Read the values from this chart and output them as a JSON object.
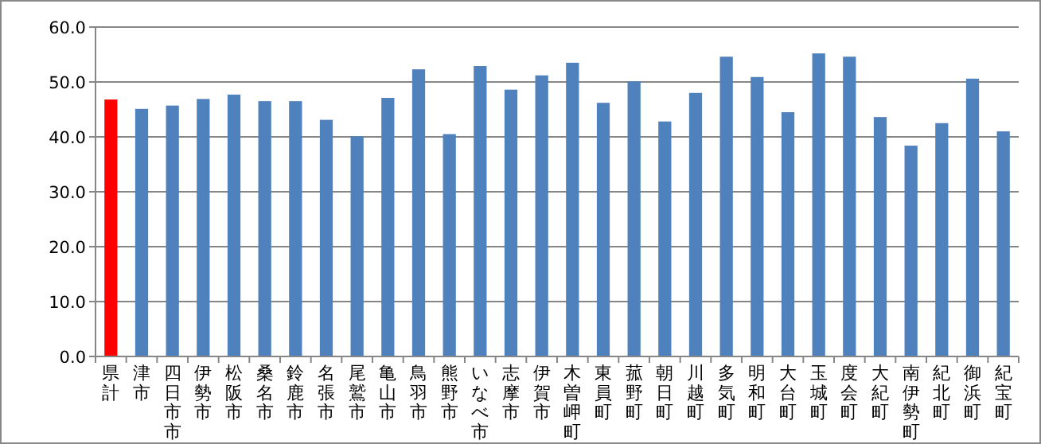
{
  "chart_data": {
    "type": "bar",
    "categories": [
      "県計",
      "津市",
      "四日市市",
      "伊勢市",
      "松阪市",
      "桑名市",
      "鈴鹿市",
      "名張市",
      "尾鷲市",
      "亀山市",
      "鳥羽市",
      "熊野市",
      "いなべ市",
      "志摩市",
      "伊賀市",
      "木曽岬町",
      "東員町",
      "菰野町",
      "朝日町",
      "川越町",
      "多気町",
      "明和町",
      "大台町",
      "玉城町",
      "度会町",
      "大紀町",
      "南伊勢町",
      "紀北町",
      "御浜町",
      "紀宝町"
    ],
    "values": [
      46.8,
      45.1,
      45.7,
      46.9,
      47.7,
      46.5,
      46.5,
      43.1,
      40.1,
      47.1,
      52.3,
      40.5,
      52.9,
      48.6,
      51.2,
      53.5,
      46.2,
      50.1,
      42.8,
      48.0,
      54.6,
      50.9,
      44.5,
      55.2,
      54.6,
      43.6,
      38.4,
      42.5,
      50.6,
      41.0
    ],
    "colors": [
      "#ff0000",
      "#4f81bd",
      "#4f81bd",
      "#4f81bd",
      "#4f81bd",
      "#4f81bd",
      "#4f81bd",
      "#4f81bd",
      "#4f81bd",
      "#4f81bd",
      "#4f81bd",
      "#4f81bd",
      "#4f81bd",
      "#4f81bd",
      "#4f81bd",
      "#4f81bd",
      "#4f81bd",
      "#4f81bd",
      "#4f81bd",
      "#4f81bd",
      "#4f81bd",
      "#4f81bd",
      "#4f81bd",
      "#4f81bd",
      "#4f81bd",
      "#4f81bd",
      "#4f81bd",
      "#4f81bd",
      "#4f81bd",
      "#4f81bd"
    ],
    "ylim": [
      0,
      60
    ],
    "yticks": [
      {
        "value": 0,
        "label": "0.0"
      },
      {
        "value": 10,
        "label": "10.0"
      },
      {
        "value": 20,
        "label": "20.0"
      },
      {
        "value": 30,
        "label": "30.0"
      },
      {
        "value": 40,
        "label": "40.0"
      },
      {
        "value": 50,
        "label": "50.0"
      },
      {
        "value": 60,
        "label": "60.0"
      }
    ],
    "grid": "y"
  }
}
